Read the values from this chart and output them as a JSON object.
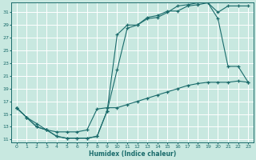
{
  "xlabel": "Humidex (Indice chaleur)",
  "ylabel": "",
  "bg_color": "#c8e8e0",
  "grid_color": "#ffffff",
  "line_color": "#1a6b6b",
  "xlim": [
    -0.5,
    23.5
  ],
  "ylim": [
    10.5,
    32.5
  ],
  "xticks": [
    0,
    1,
    2,
    3,
    4,
    5,
    6,
    7,
    8,
    9,
    10,
    11,
    12,
    13,
    14,
    15,
    16,
    17,
    18,
    19,
    20,
    21,
    22,
    23
  ],
  "yticks": [
    11,
    13,
    15,
    17,
    19,
    21,
    23,
    25,
    27,
    29,
    31
  ],
  "line1_x": [
    0,
    1,
    2,
    3,
    4,
    5,
    6,
    7,
    8,
    9,
    10,
    11,
    12,
    13,
    14,
    15,
    16,
    17,
    18,
    19,
    20,
    21,
    22,
    23
  ],
  "line1_y": [
    16.0,
    14.5,
    13.0,
    12.5,
    11.5,
    11.2,
    11.2,
    11.2,
    11.5,
    15.5,
    27.5,
    29.0,
    29.0,
    30.2,
    30.5,
    31.2,
    31.2,
    32.0,
    32.2,
    32.5,
    30.0,
    22.5,
    22.5,
    20.0
  ],
  "line2_x": [
    0,
    1,
    2,
    3,
    4,
    5,
    6,
    7,
    8,
    9,
    10,
    11,
    12,
    13,
    14,
    15,
    16,
    17,
    18,
    19,
    20,
    21,
    22,
    23
  ],
  "line2_y": [
    16.0,
    14.5,
    13.0,
    12.5,
    11.5,
    11.2,
    11.2,
    11.2,
    11.5,
    15.5,
    22.0,
    28.5,
    29.0,
    30.0,
    30.2,
    31.0,
    32.0,
    32.2,
    32.5,
    32.5,
    31.0,
    32.0,
    32.0,
    32.0
  ],
  "line3_x": [
    0,
    1,
    2,
    3,
    4,
    5,
    6,
    7,
    8,
    9,
    10,
    11,
    12,
    13,
    14,
    15,
    16,
    17,
    18,
    19,
    20,
    21,
    22,
    23
  ],
  "line3_y": [
    16.0,
    14.5,
    13.5,
    12.5,
    12.2,
    12.2,
    12.2,
    12.5,
    15.8,
    16.0,
    16.0,
    16.5,
    17.0,
    17.5,
    18.0,
    18.5,
    19.0,
    19.5,
    19.8,
    20.0,
    20.0,
    20.0,
    20.2,
    20.0
  ]
}
